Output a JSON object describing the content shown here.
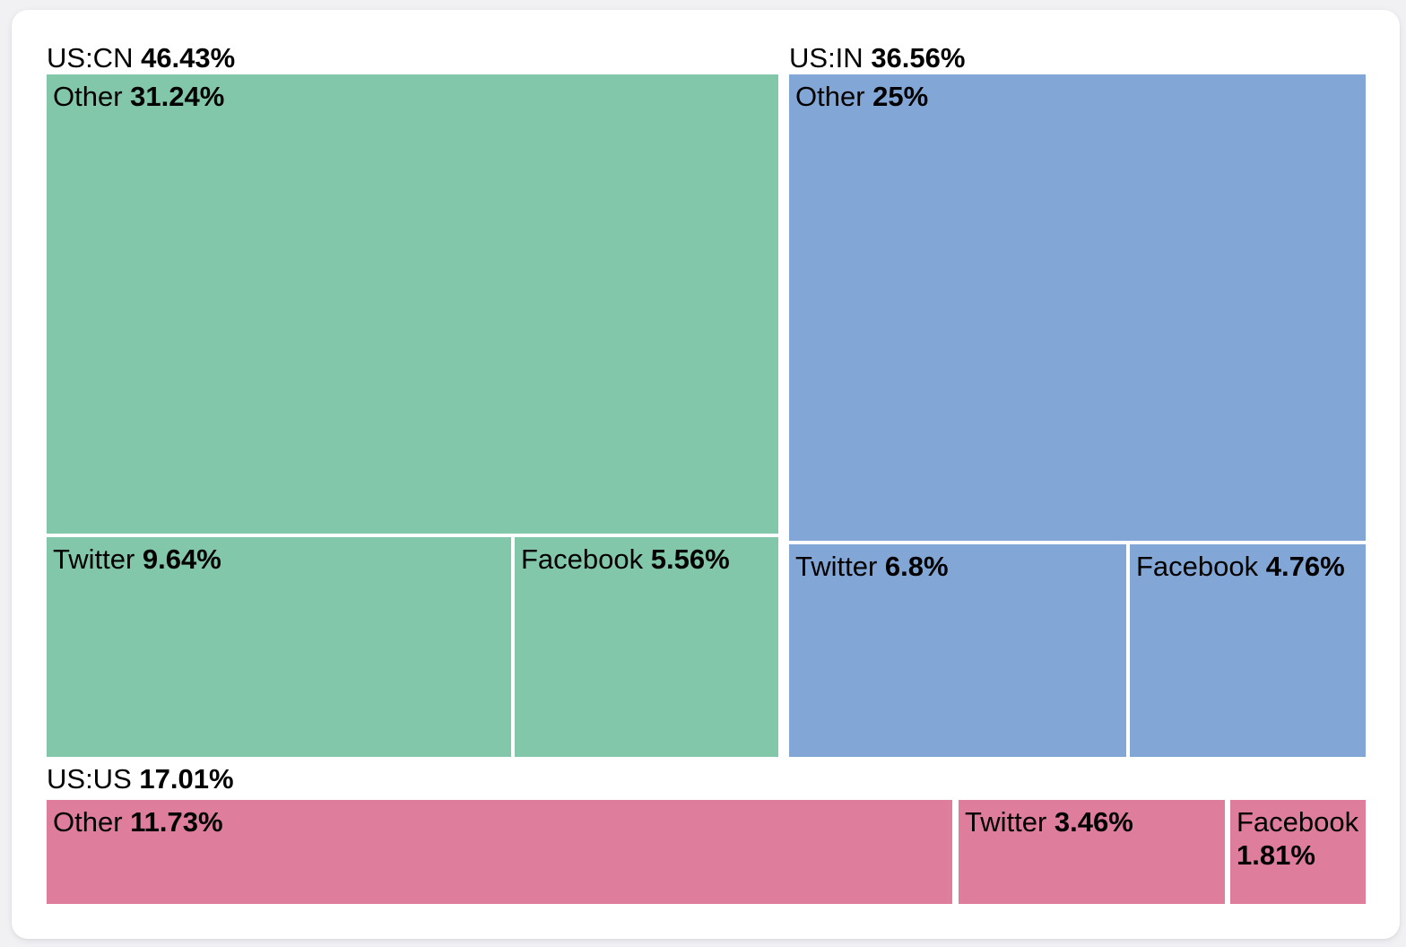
{
  "page": {
    "background_color": "#f1f1f4",
    "card_background_color": "#ffffff",
    "text_color": "#000000"
  },
  "chart_data": {
    "type": "treemap",
    "title": "",
    "legend": "none",
    "value_unit": "%",
    "groups": [
      {
        "label": "US:CN",
        "value": 46.43,
        "value_label": "46.43%",
        "color": "#82C7AA",
        "children": [
          {
            "label": "Other",
            "value": 31.24,
            "value_label": "31.24%"
          },
          {
            "label": "Twitter",
            "value": 9.64,
            "value_label": "9.64%"
          },
          {
            "label": "Facebook",
            "value": 5.56,
            "value_label": "5.56%"
          }
        ]
      },
      {
        "label": "US:IN",
        "value": 36.56,
        "value_label": "36.56%",
        "color": "#82A7D6",
        "children": [
          {
            "label": "Other",
            "value": 25,
            "value_label": "25%"
          },
          {
            "label": "Twitter",
            "value": 6.8,
            "value_label": "6.8%"
          },
          {
            "label": "Facebook",
            "value": 4.76,
            "value_label": "4.76%"
          }
        ]
      },
      {
        "label": "US:US",
        "value": 17.01,
        "value_label": "17.01%",
        "color": "#DF7D9D",
        "children": [
          {
            "label": "Other",
            "value": 11.73,
            "value_label": "11.73%"
          },
          {
            "label": "Twitter",
            "value": 3.46,
            "value_label": "3.46%"
          },
          {
            "label": "Facebook",
            "value": 1.81,
            "value_label": "1.81%"
          }
        ]
      }
    ]
  }
}
